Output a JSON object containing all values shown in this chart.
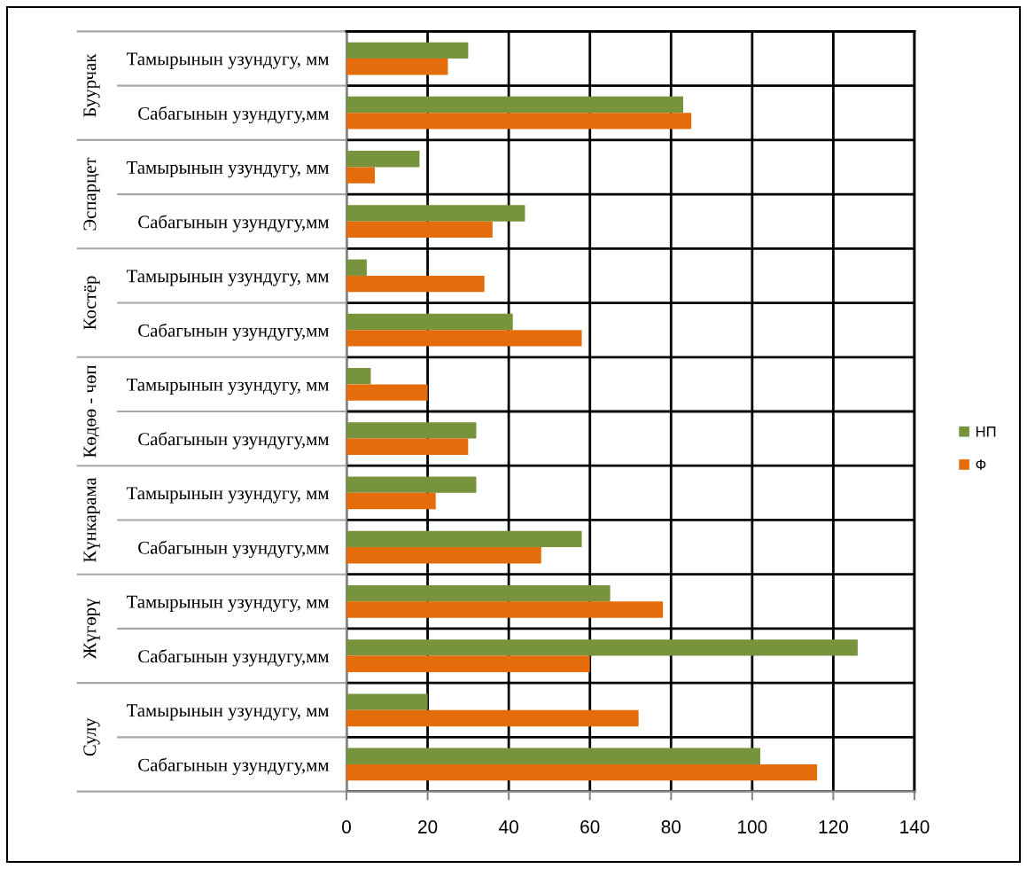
{
  "chart_data": {
    "type": "bar",
    "orientation": "horizontal",
    "categories": [
      "Тамырынын узундугу, мм",
      "Сабагынын узундугу,мм",
      "Тамырынын узундугу, мм",
      "Сабагынын узундугу,мм",
      "Тамырынын узундугу, мм",
      "Сабагынын узундугу,мм",
      "Тамырынын узундугу, мм",
      "Сабагынын узундугу,мм",
      "Тамырынын узундугу, мм",
      "Сабагынын узундугу,мм",
      "Тамырынын узундугу, мм",
      "Сабагынын узундугу,мм",
      "Тамырынын узундугу, мм",
      "Сабагынын узундугу,мм"
    ],
    "series": [
      {
        "name": "НП",
        "color": "#77933c",
        "values": [
          30,
          83,
          18,
          44,
          5,
          41,
          6,
          32,
          32,
          58,
          65,
          126,
          20,
          102
        ]
      },
      {
        "name": "Ф",
        "color": "#e46c0a",
        "values": [
          25,
          85,
          7,
          36,
          34,
          58,
          20,
          30,
          22,
          48,
          78,
          60,
          72,
          116
        ]
      }
    ],
    "xlim": [
      0,
      140
    ],
    "xticks": [
      0,
      20,
      40,
      60,
      80,
      100,
      120,
      140
    ],
    "grid": true,
    "legend": "right",
    "annotations": [
      "Буурчак",
      "Эспарцет",
      "Костёр",
      "Көдөө - чөп",
      "Күнкарама",
      "Жүгөрү",
      "Сулу"
    ]
  }
}
